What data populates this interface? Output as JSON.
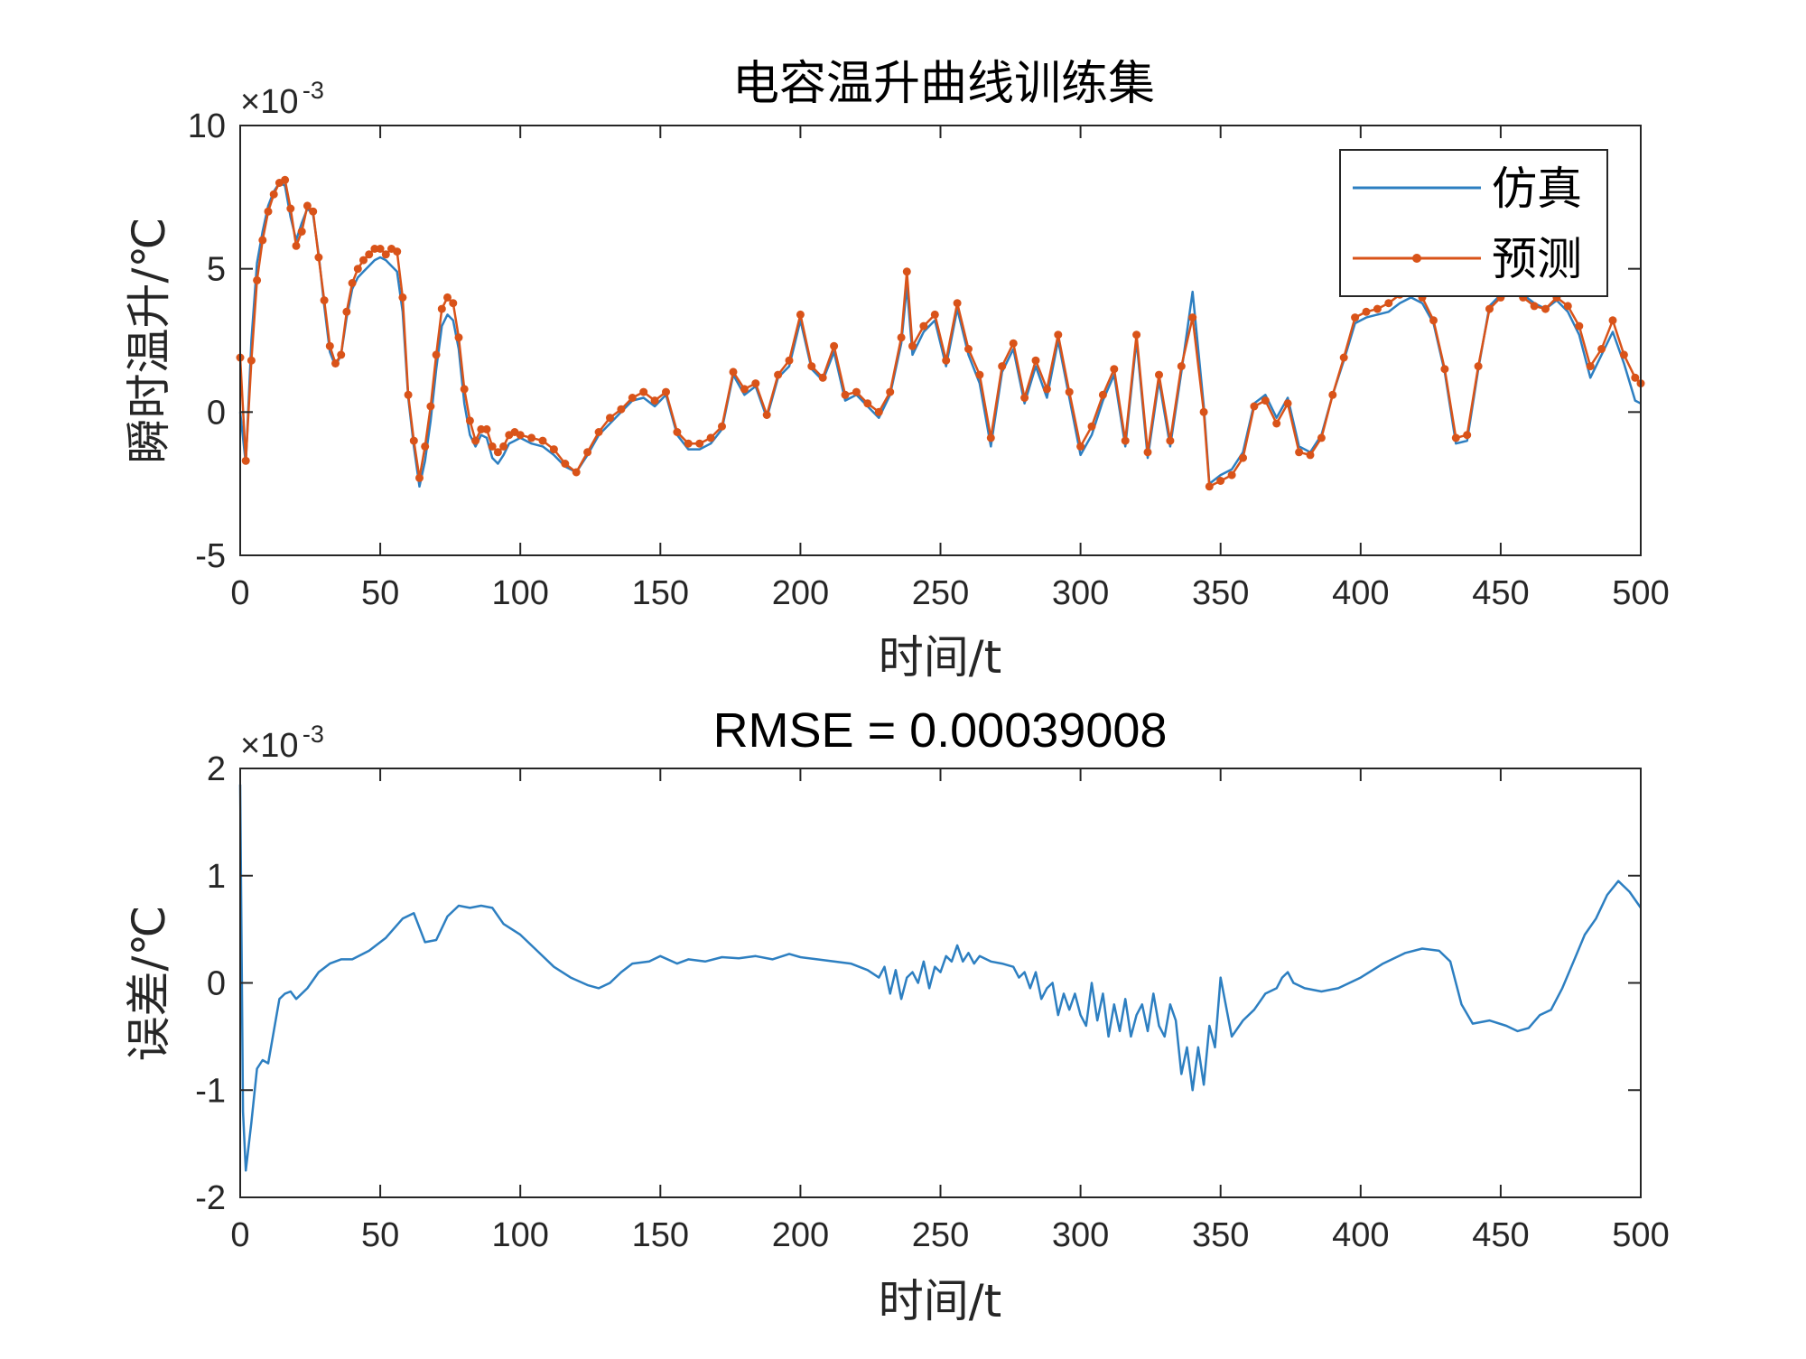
{
  "colors": {
    "sim": "#2d7fc1",
    "pred": "#d95319",
    "axis": "#262626",
    "background": "#ffffff"
  },
  "chart_data": [
    {
      "type": "line",
      "title": "电容温升曲线训练集",
      "xlabel": "时间/t",
      "ylabel": "瞬时温升/℃",
      "xlim": [
        0,
        500
      ],
      "ylim": [
        -5,
        10
      ],
      "y_scale_exponent": "×10",
      "y_scale_exponent_power": "-3",
      "xticks": [
        "0",
        "50",
        "100",
        "150",
        "200",
        "250",
        "300",
        "350",
        "400",
        "450",
        "500"
      ],
      "yticks": [
        "-5",
        "0",
        "5",
        "10"
      ],
      "legend": {
        "position": "top-right",
        "entries": [
          "仿真",
          "预测"
        ]
      },
      "series": [
        {
          "name": "仿真",
          "x": [
            0,
            2,
            4,
            6,
            8,
            10,
            12,
            14,
            16,
            18,
            20,
            22,
            24,
            26,
            28,
            30,
            32,
            34,
            36,
            38,
            40,
            42,
            44,
            46,
            48,
            50,
            52,
            54,
            56,
            58,
            60,
            62,
            64,
            66,
            68,
            70,
            72,
            74,
            76,
            78,
            80,
            82,
            84,
            86,
            88,
            90,
            92,
            94,
            96,
            98,
            100,
            104,
            108,
            112,
            116,
            120,
            124,
            128,
            132,
            136,
            140,
            144,
            148,
            152,
            156,
            160,
            164,
            168,
            172,
            176,
            180,
            184,
            188,
            192,
            196,
            200,
            204,
            208,
            212,
            216,
            220,
            224,
            228,
            232,
            236,
            238,
            240,
            244,
            248,
            252,
            256,
            260,
            264,
            268,
            272,
            276,
            280,
            284,
            288,
            292,
            296,
            300,
            304,
            308,
            312,
            316,
            320,
            324,
            328,
            332,
            336,
            340,
            344,
            346,
            350,
            354,
            358,
            362,
            366,
            370,
            374,
            378,
            382,
            386,
            390,
            394,
            398,
            402,
            406,
            410,
            414,
            418,
            422,
            426,
            430,
            434,
            438,
            442,
            446,
            450,
            454,
            458,
            462,
            466,
            470,
            474,
            478,
            482,
            486,
            490,
            494,
            498,
            500
          ],
          "values": [
            0.0019,
            -1.8,
            2.5,
            5.2,
            6.3,
            7.2,
            7.7,
            8.0,
            7.9,
            6.8,
            6.0,
            6.6,
            7.1,
            6.9,
            5.5,
            3.7,
            2.1,
            1.6,
            2.0,
            3.3,
            4.3,
            4.7,
            4.9,
            5.1,
            5.3,
            5.4,
            5.3,
            5.1,
            4.9,
            3.5,
            0.5,
            -1.2,
            -2.6,
            -1.7,
            -0.3,
            1.5,
            3.0,
            3.4,
            3.2,
            2.2,
            0.3,
            -0.8,
            -1.2,
            -0.8,
            -0.9,
            -1.6,
            -1.8,
            -1.5,
            -1.1,
            -1.0,
            -0.9,
            -1.1,
            -1.2,
            -1.5,
            -1.9,
            -2.1,
            -1.5,
            -0.8,
            -0.4,
            0.0,
            0.4,
            0.5,
            0.2,
            0.6,
            -0.8,
            -1.3,
            -1.3,
            -1.1,
            -0.6,
            1.3,
            0.6,
            0.9,
            -0.2,
            1.2,
            1.6,
            3.2,
            1.5,
            1.1,
            2.1,
            0.4,
            0.6,
            0.2,
            -0.2,
            0.6,
            2.4,
            4.4,
            2.0,
            2.8,
            3.2,
            1.6,
            3.6,
            2.0,
            1.0,
            -1.2,
            1.4,
            2.2,
            0.3,
            1.6,
            0.5,
            2.5,
            0.5,
            -1.5,
            -0.8,
            0.4,
            1.3,
            -1.2,
            2.5,
            -1.6,
            1.1,
            -1.2,
            1.4,
            4.2,
            0.2,
            -2.5,
            -2.2,
            -2.0,
            -1.4,
            0.3,
            0.6,
            -0.2,
            0.5,
            -1.2,
            -1.4,
            -0.8,
            0.6,
            1.8,
            3.1,
            3.3,
            3.4,
            3.5,
            3.8,
            4.0,
            3.8,
            3.1,
            1.4,
            -1.1,
            -1.0,
            1.5,
            3.7,
            4.1,
            4.4,
            4.1,
            3.8,
            3.6,
            3.9,
            3.5,
            2.7,
            1.2,
            2.0,
            2.8,
            1.7,
            0.4,
            0.3
          ]
        },
        {
          "name": "预测",
          "x": [
            0,
            2,
            4,
            6,
            8,
            10,
            12,
            14,
            16,
            18,
            20,
            22,
            24,
            26,
            28,
            30,
            32,
            34,
            36,
            38,
            40,
            42,
            44,
            46,
            48,
            50,
            52,
            54,
            56,
            58,
            60,
            62,
            64,
            66,
            68,
            70,
            72,
            74,
            76,
            78,
            80,
            82,
            84,
            86,
            88,
            90,
            92,
            94,
            96,
            98,
            100,
            104,
            108,
            112,
            116,
            120,
            124,
            128,
            132,
            136,
            140,
            144,
            148,
            152,
            156,
            160,
            164,
            168,
            172,
            176,
            180,
            184,
            188,
            192,
            196,
            200,
            204,
            208,
            212,
            216,
            220,
            224,
            228,
            232,
            236,
            238,
            240,
            244,
            248,
            252,
            256,
            260,
            264,
            268,
            272,
            276,
            280,
            284,
            288,
            292,
            296,
            300,
            304,
            308,
            312,
            316,
            320,
            324,
            328,
            332,
            336,
            340,
            344,
            346,
            350,
            354,
            358,
            362,
            366,
            370,
            374,
            378,
            382,
            386,
            390,
            394,
            398,
            402,
            406,
            410,
            414,
            418,
            422,
            426,
            430,
            434,
            438,
            442,
            446,
            450,
            454,
            458,
            462,
            466,
            470,
            474,
            478,
            482,
            486,
            490,
            494,
            498,
            500
          ],
          "values": [
            1.9,
            -1.7,
            1.8,
            4.6,
            6.0,
            7.0,
            7.6,
            8.0,
            8.1,
            7.1,
            5.8,
            6.3,
            7.2,
            7.0,
            5.4,
            3.9,
            2.3,
            1.7,
            2.0,
            3.5,
            4.5,
            5.0,
            5.3,
            5.5,
            5.7,
            5.7,
            5.5,
            5.7,
            5.6,
            4.0,
            0.6,
            -1.0,
            -2.3,
            -1.2,
            0.2,
            2.0,
            3.6,
            4.0,
            3.8,
            2.6,
            0.8,
            -0.3,
            -1.0,
            -0.6,
            -0.6,
            -1.2,
            -1.4,
            -1.2,
            -0.8,
            -0.7,
            -0.8,
            -0.9,
            -1.0,
            -1.3,
            -1.8,
            -2.1,
            -1.4,
            -0.7,
            -0.2,
            0.1,
            0.5,
            0.7,
            0.4,
            0.7,
            -0.7,
            -1.1,
            -1.1,
            -0.9,
            -0.5,
            1.4,
            0.8,
            1.0,
            -0.1,
            1.3,
            1.8,
            3.4,
            1.6,
            1.2,
            2.3,
            0.6,
            0.7,
            0.3,
            0.0,
            0.7,
            2.6,
            4.9,
            2.3,
            3.0,
            3.4,
            1.8,
            3.8,
            2.2,
            1.3,
            -0.9,
            1.6,
            2.4,
            0.5,
            1.8,
            0.8,
            2.7,
            0.7,
            -1.2,
            -0.5,
            0.6,
            1.5,
            -1.0,
            2.7,
            -1.4,
            1.3,
            -1.0,
            1.6,
            3.3,
            0.0,
            -2.6,
            -2.4,
            -2.2,
            -1.6,
            0.2,
            0.4,
            -0.4,
            0.3,
            -1.4,
            -1.5,
            -0.9,
            0.6,
            1.9,
            3.3,
            3.5,
            3.6,
            3.8,
            4.1,
            4.3,
            4.0,
            3.2,
            1.5,
            -0.9,
            -0.8,
            1.6,
            3.6,
            4.0,
            4.3,
            4.0,
            3.7,
            3.6,
            4.0,
            3.7,
            3.0,
            1.6,
            2.2,
            3.2,
            2.0,
            1.2,
            1.0
          ]
        }
      ]
    },
    {
      "type": "line",
      "title": "RMSE = 0.00039008",
      "xlabel": "时间/t",
      "ylabel": "误差/℃",
      "xlim": [
        0,
        500
      ],
      "ylim": [
        -2,
        2
      ],
      "y_scale_exponent": "×10",
      "y_scale_exponent_power": "-3",
      "xticks": [
        "0",
        "50",
        "100",
        "150",
        "200",
        "250",
        "300",
        "350",
        "400",
        "450",
        "500"
      ],
      "yticks": [
        "-2",
        "-1",
        "0",
        "1",
        "2"
      ],
      "series": [
        {
          "name": "误差",
          "x": [
            0,
            1,
            2,
            4,
            6,
            8,
            10,
            12,
            14,
            16,
            18,
            20,
            24,
            28,
            32,
            36,
            40,
            46,
            52,
            58,
            62,
            66,
            70,
            74,
            78,
            82,
            86,
            90,
            94,
            100,
            106,
            112,
            118,
            124,
            128,
            132,
            136,
            140,
            146,
            150,
            156,
            160,
            166,
            172,
            178,
            184,
            190,
            196,
            200,
            206,
            212,
            218,
            224,
            228,
            230,
            232,
            234,
            236,
            238,
            240,
            242,
            244,
            246,
            248,
            250,
            252,
            254,
            256,
            258,
            260,
            262,
            264,
            268,
            272,
            276,
            278,
            280,
            282,
            284,
            286,
            288,
            290,
            292,
            294,
            296,
            298,
            300,
            302,
            304,
            306,
            308,
            310,
            312,
            314,
            316,
            318,
            320,
            322,
            324,
            326,
            328,
            330,
            332,
            334,
            336,
            338,
            340,
            342,
            344,
            346,
            348,
            350,
            354,
            358,
            362,
            366,
            370,
            372,
            374,
            376,
            380,
            386,
            392,
            400,
            408,
            416,
            422,
            428,
            432,
            436,
            440,
            446,
            452,
            456,
            460,
            464,
            468,
            472,
            476,
            480,
            484,
            488,
            492,
            496,
            500
          ],
          "values": [
            1.85,
            -1.2,
            -1.75,
            -1.3,
            -0.8,
            -0.72,
            -0.75,
            -0.45,
            -0.15,
            -0.1,
            -0.08,
            -0.15,
            -0.05,
            0.1,
            0.18,
            0.22,
            0.22,
            0.3,
            0.42,
            0.6,
            0.65,
            0.38,
            0.4,
            0.62,
            0.72,
            0.7,
            0.72,
            0.7,
            0.55,
            0.45,
            0.3,
            0.15,
            0.05,
            -0.02,
            -0.05,
            0.0,
            0.1,
            0.18,
            0.2,
            0.25,
            0.18,
            0.22,
            0.2,
            0.24,
            0.23,
            0.25,
            0.22,
            0.27,
            0.24,
            0.22,
            0.2,
            0.18,
            0.12,
            0.05,
            0.15,
            -0.1,
            0.12,
            -0.15,
            0.05,
            0.1,
            0.0,
            0.2,
            -0.05,
            0.15,
            0.1,
            0.25,
            0.2,
            0.35,
            0.2,
            0.28,
            0.18,
            0.25,
            0.2,
            0.18,
            0.15,
            0.05,
            0.1,
            -0.05,
            0.1,
            -0.15,
            -0.05,
            0.0,
            -0.3,
            -0.1,
            -0.25,
            -0.1,
            -0.3,
            -0.4,
            0.0,
            -0.35,
            -0.1,
            -0.5,
            -0.2,
            -0.45,
            -0.15,
            -0.5,
            -0.3,
            -0.2,
            -0.45,
            -0.1,
            -0.4,
            -0.5,
            -0.2,
            -0.35,
            -0.85,
            -0.6,
            -1.0,
            -0.6,
            -0.95,
            -0.4,
            -0.6,
            0.05,
            -0.5,
            -0.35,
            -0.25,
            -0.1,
            -0.05,
            0.05,
            0.1,
            0.0,
            -0.05,
            -0.08,
            -0.05,
            0.05,
            0.18,
            0.28,
            0.32,
            0.3,
            0.2,
            -0.2,
            -0.38,
            -0.35,
            -0.4,
            -0.45,
            -0.42,
            -0.3,
            -0.25,
            -0.05,
            0.2,
            0.45,
            0.6,
            0.82,
            0.95,
            0.85,
            0.7
          ]
        }
      ]
    }
  ]
}
